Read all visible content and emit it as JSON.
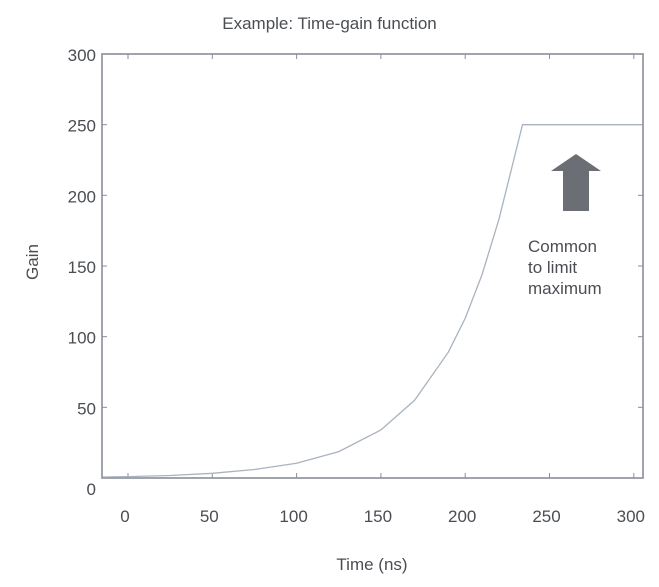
{
  "chart_data": {
    "type": "line",
    "title": "Example: Time-gain function",
    "xlabel": "Time (ns)",
    "ylabel": "Gain",
    "xlim": [
      -15,
      305
    ],
    "ylim": [
      0,
      300
    ],
    "x_ticks": [
      0,
      50,
      100,
      150,
      200,
      250,
      300
    ],
    "y_ticks": [
      0,
      50,
      100,
      150,
      200,
      250,
      300
    ],
    "grid": false,
    "legend": null,
    "series": [
      {
        "name": "Time-gain function",
        "x": [
          -15,
          0,
          25,
          50,
          75,
          100,
          125,
          150,
          170,
          190,
          200,
          210,
          220,
          234,
          250,
          275,
          305
        ],
        "y": [
          0.7,
          1,
          1.8,
          3.3,
          6,
          10.4,
          18.7,
          34,
          55,
          89,
          113,
          144,
          183,
          250,
          250,
          250,
          250
        ]
      }
    ],
    "annotations": [
      {
        "text": "Common\nto limit\nmaximum",
        "arrow": "up",
        "x": 270,
        "y": 175
      }
    ]
  },
  "title": "Example: Time-gain function",
  "axes": {
    "xlabel": "Time (ns)",
    "ylabel": "Gain",
    "x_ticks": [
      "0",
      "50",
      "100",
      "150",
      "200",
      "250",
      "300"
    ],
    "y_ticks": [
      "0",
      "50",
      "100",
      "150",
      "200",
      "250",
      "300"
    ]
  },
  "annotation": {
    "text": "Common\nto limit\nmaximum"
  },
  "colors": {
    "frame": "#8a8e96",
    "curve": "#a9b3bf",
    "arrow": "#6b6e75",
    "text": "#4a4d52"
  }
}
